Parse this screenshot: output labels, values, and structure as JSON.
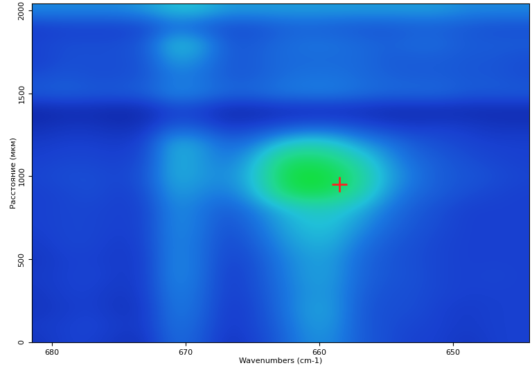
{
  "chart_data": {
    "type": "heatmap",
    "x_label": "Wavenumbers (cm-1)",
    "y_label": "Расстояние (мкм)",
    "xlim": [
      681.5,
      644.3
    ],
    "ylim": [
      0,
      2040
    ],
    "xticks": [
      680,
      670,
      660,
      650
    ],
    "yticks": [
      0,
      500,
      1000,
      1500,
      2000
    ],
    "x": [
      681,
      679,
      677,
      675,
      673,
      671,
      669,
      667,
      665,
      663,
      661,
      659,
      657,
      655,
      653,
      651,
      649,
      647,
      645
    ],
    "y": [
      0,
      100,
      200,
      300,
      400,
      500,
      600,
      700,
      800,
      900,
      1000,
      1100,
      1200,
      1300,
      1400,
      1500,
      1600,
      1700,
      1800,
      1900,
      2000
    ],
    "zlim": [
      0,
      1
    ],
    "cells": [
      [
        0.15,
        0.2,
        0.2,
        0.15,
        0.15,
        0.35,
        0.3,
        0.15,
        0.2,
        0.3,
        0.45,
        0.45,
        0.3,
        0.25,
        0.2,
        0.2,
        0.15,
        0.2,
        0.2
      ],
      [
        0.18,
        0.2,
        0.22,
        0.18,
        0.18,
        0.38,
        0.32,
        0.18,
        0.22,
        0.32,
        0.48,
        0.48,
        0.3,
        0.25,
        0.22,
        0.2,
        0.18,
        0.2,
        0.2
      ],
      [
        0.15,
        0.18,
        0.2,
        0.15,
        0.18,
        0.4,
        0.35,
        0.18,
        0.22,
        0.35,
        0.5,
        0.5,
        0.3,
        0.25,
        0.25,
        0.2,
        0.18,
        0.2,
        0.2
      ],
      [
        0.16,
        0.2,
        0.2,
        0.16,
        0.2,
        0.42,
        0.36,
        0.2,
        0.24,
        0.36,
        0.48,
        0.48,
        0.32,
        0.26,
        0.25,
        0.22,
        0.2,
        0.2,
        0.2
      ],
      [
        0.18,
        0.2,
        0.22,
        0.18,
        0.2,
        0.45,
        0.38,
        0.2,
        0.25,
        0.38,
        0.5,
        0.5,
        0.34,
        0.28,
        0.26,
        0.22,
        0.2,
        0.22,
        0.2
      ],
      [
        0.16,
        0.2,
        0.2,
        0.18,
        0.2,
        0.45,
        0.38,
        0.22,
        0.26,
        0.4,
        0.5,
        0.5,
        0.35,
        0.28,
        0.25,
        0.22,
        0.2,
        0.2,
        0.2
      ],
      [
        0.18,
        0.22,
        0.22,
        0.18,
        0.22,
        0.44,
        0.38,
        0.24,
        0.3,
        0.45,
        0.55,
        0.55,
        0.4,
        0.3,
        0.26,
        0.22,
        0.2,
        0.2,
        0.2
      ],
      [
        0.2,
        0.22,
        0.22,
        0.2,
        0.22,
        0.45,
        0.4,
        0.26,
        0.35,
        0.5,
        0.6,
        0.6,
        0.48,
        0.35,
        0.28,
        0.24,
        0.2,
        0.2,
        0.2
      ],
      [
        0.2,
        0.22,
        0.22,
        0.2,
        0.22,
        0.45,
        0.4,
        0.3,
        0.4,
        0.55,
        0.65,
        0.65,
        0.55,
        0.4,
        0.3,
        0.25,
        0.2,
        0.2,
        0.2
      ],
      [
        0.2,
        0.22,
        0.25,
        0.2,
        0.25,
        0.5,
        0.45,
        0.4,
        0.55,
        0.85,
        0.95,
        0.9,
        0.75,
        0.5,
        0.35,
        0.3,
        0.25,
        0.22,
        0.2
      ],
      [
        0.22,
        0.25,
        0.25,
        0.22,
        0.28,
        0.55,
        0.5,
        0.45,
        0.6,
        0.9,
        1.0,
        0.95,
        0.8,
        0.55,
        0.4,
        0.3,
        0.28,
        0.25,
        0.22
      ],
      [
        0.2,
        0.22,
        0.22,
        0.2,
        0.25,
        0.55,
        0.5,
        0.4,
        0.55,
        0.85,
        0.9,
        0.85,
        0.7,
        0.5,
        0.35,
        0.3,
        0.25,
        0.22,
        0.2
      ],
      [
        0.18,
        0.2,
        0.2,
        0.18,
        0.22,
        0.55,
        0.5,
        0.35,
        0.4,
        0.6,
        0.7,
        0.65,
        0.5,
        0.4,
        0.3,
        0.25,
        0.22,
        0.2,
        0.2
      ],
      [
        0.12,
        0.15,
        0.15,
        0.12,
        0.15,
        0.3,
        0.28,
        0.18,
        0.2,
        0.25,
        0.3,
        0.3,
        0.25,
        0.2,
        0.18,
        0.2,
        0.18,
        0.15,
        0.15
      ],
      [
        0.08,
        0.1,
        0.1,
        0.08,
        0.1,
        0.2,
        0.18,
        0.1,
        0.1,
        0.12,
        0.12,
        0.12,
        0.12,
        0.1,
        0.1,
        0.1,
        0.1,
        0.1,
        0.1
      ],
      [
        0.3,
        0.32,
        0.3,
        0.3,
        0.32,
        0.45,
        0.42,
        0.35,
        0.35,
        0.4,
        0.42,
        0.42,
        0.38,
        0.35,
        0.35,
        0.35,
        0.3,
        0.3,
        0.3
      ],
      [
        0.25,
        0.28,
        0.25,
        0.25,
        0.28,
        0.4,
        0.38,
        0.3,
        0.3,
        0.35,
        0.38,
        0.38,
        0.35,
        0.32,
        0.3,
        0.3,
        0.28,
        0.28,
        0.25
      ],
      [
        0.2,
        0.25,
        0.25,
        0.25,
        0.28,
        0.5,
        0.45,
        0.3,
        0.3,
        0.35,
        0.35,
        0.35,
        0.35,
        0.3,
        0.3,
        0.3,
        0.28,
        0.28,
        0.25
      ],
      [
        0.22,
        0.25,
        0.25,
        0.25,
        0.3,
        0.6,
        0.55,
        0.3,
        0.3,
        0.35,
        0.38,
        0.38,
        0.35,
        0.32,
        0.35,
        0.35,
        0.3,
        0.3,
        0.3
      ],
      [
        0.18,
        0.2,
        0.2,
        0.2,
        0.22,
        0.35,
        0.3,
        0.25,
        0.25,
        0.3,
        0.32,
        0.3,
        0.28,
        0.28,
        0.3,
        0.3,
        0.28,
        0.25,
        0.25
      ],
      [
        0.45,
        0.45,
        0.45,
        0.45,
        0.5,
        0.6,
        0.6,
        0.5,
        0.5,
        0.5,
        0.5,
        0.5,
        0.5,
        0.5,
        0.5,
        0.5,
        0.45,
        0.45,
        0.45
      ]
    ],
    "cursor": {
      "x": 658.5,
      "y": 950
    },
    "marker": "+",
    "color": "#ff2020"
  }
}
